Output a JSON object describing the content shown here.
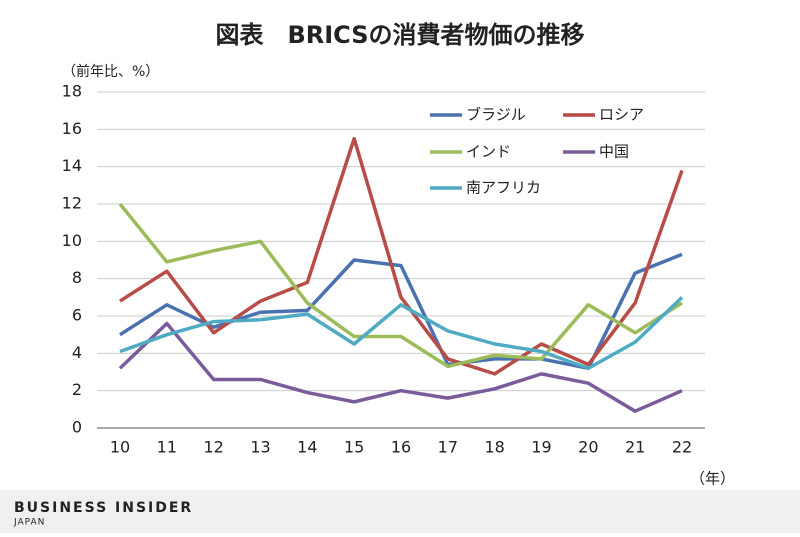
{
  "chart_data": {
    "type": "line",
    "title": "図表　BRICSの消費者物価の推移",
    "y_label": "（前年比、%）",
    "x_label": "（年）",
    "source": "BUSINESS INSIDER",
    "source_sub": "JAPAN",
    "categories": [
      "10",
      "11",
      "12",
      "13",
      "14",
      "15",
      "16",
      "17",
      "18",
      "19",
      "20",
      "21",
      "22"
    ],
    "series": [
      {
        "name": "ブラジル",
        "color": "#4a72b0",
        "values": [
          5.0,
          6.6,
          5.4,
          6.2,
          6.3,
          9.0,
          8.7,
          3.4,
          3.7,
          3.7,
          3.2,
          8.3,
          9.3
        ]
      },
      {
        "name": "ロシア",
        "color": "#b84c46",
        "values": [
          6.8,
          8.4,
          5.1,
          6.8,
          7.8,
          15.5,
          7.0,
          3.7,
          2.9,
          4.5,
          3.4,
          6.7,
          13.8
        ]
      },
      {
        "name": "インド",
        "color": "#9cbb5a",
        "values": [
          12.0,
          8.9,
          9.5,
          10.0,
          6.7,
          4.9,
          4.9,
          3.3,
          3.9,
          3.7,
          6.6,
          5.1,
          6.7
        ]
      },
      {
        "name": "中国",
        "color": "#7a5b9c",
        "values": [
          3.2,
          5.6,
          2.6,
          2.6,
          1.9,
          1.4,
          2.0,
          1.6,
          2.1,
          2.9,
          2.4,
          0.9,
          2.0
        ]
      },
      {
        "name": "南アフリカ",
        "color": "#4faac3",
        "values": [
          4.1,
          5.0,
          5.7,
          5.8,
          6.1,
          4.5,
          6.6,
          5.2,
          4.5,
          4.1,
          3.2,
          4.6,
          7.0
        ]
      }
    ],
    "ylim": [
      0,
      18
    ],
    "yticks": [
      0,
      2,
      4,
      6,
      8,
      10,
      12,
      14,
      16,
      18
    ],
    "grid": true
  }
}
